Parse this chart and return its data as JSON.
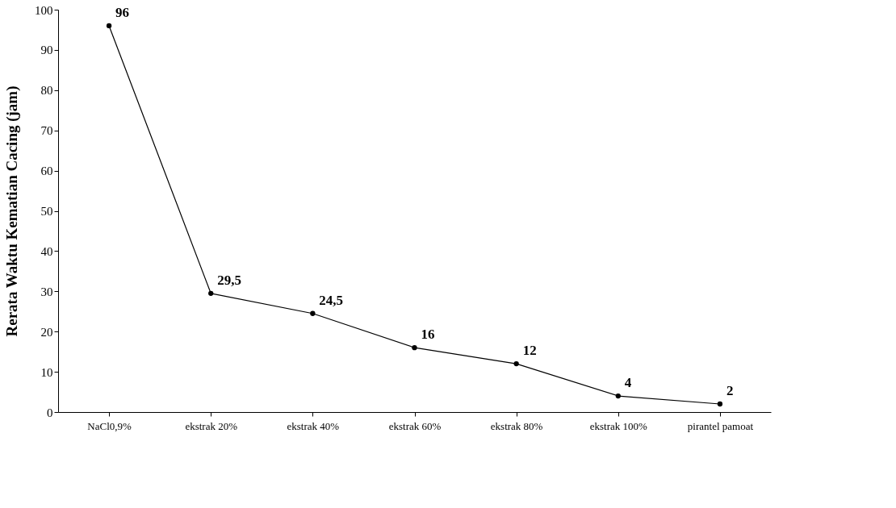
{
  "chart_data": {
    "type": "line",
    "categories": [
      "NaCl0,9%",
      "ekstrak 20%",
      "ekstrak 40%",
      "ekstrak 60%",
      "ekstrak 80%",
      "ekstrak 100%",
      "pirantel pamoat"
    ],
    "series": [
      {
        "color": "#000000",
        "values": [
          96,
          29.5,
          24.5,
          16,
          12,
          4,
          2
        ],
        "value_labels": [
          "96",
          "29,5",
          "24,5",
          "16",
          "12",
          "4",
          "2"
        ]
      }
    ],
    "ylabel": "Rerata Waktu Kematian Cacing (jam)",
    "ylim": [
      0,
      100
    ],
    "yticks": [
      0,
      10,
      20,
      30,
      40,
      50,
      60,
      70,
      80,
      90,
      100
    ],
    "grid": false,
    "marker": "circle",
    "line_style": "solid"
  }
}
